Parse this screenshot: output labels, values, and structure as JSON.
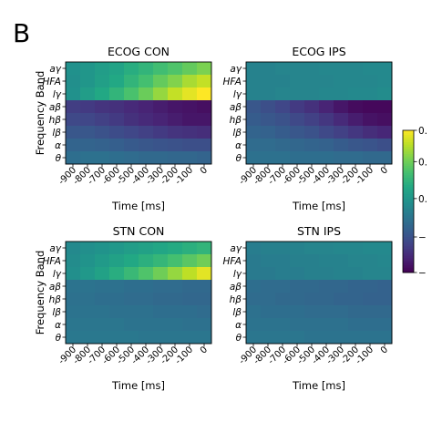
{
  "panel_label": "B",
  "colors": {
    "colormap": "viridis",
    "viridis_stops": [
      "#440154",
      "#482475",
      "#414487",
      "#355f8d",
      "#2a788e",
      "#21918c",
      "#22a884",
      "#44bf70",
      "#7ad151",
      "#bddf26",
      "#fde725"
    ]
  },
  "chart_data": [
    {
      "type": "heatmap",
      "title": "ECOG CON",
      "xlabel": "Time [ms]",
      "ylabel": "Frequency Band",
      "x": [
        "-900",
        "-800",
        "-700",
        "-600",
        "-500",
        "-400",
        "-300",
        "-200",
        "-100",
        "0"
      ],
      "y": [
        "aγ",
        "HFA",
        "lγ",
        "aβ",
        "hβ",
        "lβ",
        "α",
        "θ"
      ],
      "values": [
        [
          0.5,
          0.52,
          0.55,
          0.58,
          0.62,
          0.65,
          0.69,
          0.72,
          0.76,
          0.8
        ],
        [
          0.49,
          0.52,
          0.56,
          0.6,
          0.65,
          0.7,
          0.76,
          0.81,
          0.87,
          0.91
        ],
        [
          0.5,
          0.55,
          0.6,
          0.65,
          0.71,
          0.77,
          0.84,
          0.91,
          0.96,
          1.0
        ],
        [
          0.18,
          0.17,
          0.15,
          0.14,
          0.12,
          0.1,
          0.08,
          0.06,
          0.05,
          0.04
        ],
        [
          0.22,
          0.21,
          0.19,
          0.17,
          0.14,
          0.12,
          0.1,
          0.08,
          0.06,
          0.06
        ],
        [
          0.27,
          0.27,
          0.25,
          0.23,
          0.21,
          0.19,
          0.17,
          0.15,
          0.14,
          0.13
        ],
        [
          0.32,
          0.32,
          0.31,
          0.3,
          0.28,
          0.27,
          0.26,
          0.25,
          0.24,
          0.24
        ],
        [
          0.36,
          0.37,
          0.37,
          0.36,
          0.35,
          0.34,
          0.34,
          0.33,
          0.33,
          0.32
        ]
      ]
    },
    {
      "type": "heatmap",
      "title": "ECOG IPS",
      "xlabel": "Time [ms]",
      "ylabel": "",
      "x": [
        "-900",
        "-800",
        "-700",
        "-600",
        "-500",
        "-400",
        "-300",
        "-200",
        "-100",
        "0"
      ],
      "y": [
        "aγ",
        "HFA",
        "lγ",
        "aβ",
        "hβ",
        "lβ",
        "α",
        "θ"
      ],
      "values": [
        [
          0.44,
          0.44,
          0.45,
          0.45,
          0.45,
          0.46,
          0.46,
          0.46,
          0.47,
          0.47
        ],
        [
          0.44,
          0.44,
          0.44,
          0.45,
          0.45,
          0.45,
          0.46,
          0.46,
          0.46,
          0.47
        ],
        [
          0.44,
          0.44,
          0.45,
          0.45,
          0.45,
          0.46,
          0.46,
          0.47,
          0.47,
          0.48
        ],
        [
          0.27,
          0.24,
          0.21,
          0.17,
          0.14,
          0.1,
          0.06,
          0.03,
          0.02,
          0.02
        ],
        [
          0.29,
          0.27,
          0.25,
          0.22,
          0.19,
          0.16,
          0.12,
          0.08,
          0.05,
          0.04
        ],
        [
          0.32,
          0.31,
          0.29,
          0.27,
          0.25,
          0.22,
          0.19,
          0.16,
          0.13,
          0.11
        ],
        [
          0.35,
          0.35,
          0.34,
          0.33,
          0.32,
          0.31,
          0.29,
          0.27,
          0.26,
          0.24
        ],
        [
          0.37,
          0.37,
          0.37,
          0.36,
          0.36,
          0.36,
          0.35,
          0.35,
          0.34,
          0.34
        ]
      ]
    },
    {
      "type": "heatmap",
      "title": "STN CON",
      "xlabel": "Time [ms]",
      "ylabel": "Frequency Band",
      "x": [
        "-900",
        "-800",
        "-700",
        "-600",
        "-500",
        "-400",
        "-300",
        "-200",
        "-100",
        "0"
      ],
      "y": [
        "aγ",
        "HFA",
        "lγ",
        "aβ",
        "hβ",
        "lβ",
        "α",
        "θ"
      ],
      "values": [
        [
          0.47,
          0.49,
          0.51,
          0.53,
          0.55,
          0.57,
          0.59,
          0.61,
          0.63,
          0.65
        ],
        [
          0.48,
          0.51,
          0.54,
          0.57,
          0.6,
          0.63,
          0.66,
          0.7,
          0.74,
          0.78
        ],
        [
          0.49,
          0.53,
          0.57,
          0.62,
          0.67,
          0.72,
          0.78,
          0.84,
          0.9,
          0.96
        ],
        [
          0.38,
          0.38,
          0.37,
          0.37,
          0.36,
          0.36,
          0.35,
          0.35,
          0.34,
          0.34
        ],
        [
          0.37,
          0.37,
          0.36,
          0.36,
          0.35,
          0.35,
          0.34,
          0.34,
          0.33,
          0.33
        ],
        [
          0.38,
          0.38,
          0.38,
          0.37,
          0.37,
          0.37,
          0.36,
          0.36,
          0.36,
          0.35
        ],
        [
          0.39,
          0.39,
          0.39,
          0.39,
          0.38,
          0.38,
          0.38,
          0.38,
          0.37,
          0.37
        ],
        [
          0.4,
          0.4,
          0.4,
          0.4,
          0.4,
          0.39,
          0.39,
          0.39,
          0.39,
          0.39
        ]
      ]
    },
    {
      "type": "heatmap",
      "title": "STN IPS",
      "xlabel": "Time [ms]",
      "ylabel": "",
      "x": [
        "-900",
        "-800",
        "-700",
        "-600",
        "-500",
        "-400",
        "-300",
        "-200",
        "-100",
        "0"
      ],
      "y": [
        "aγ",
        "HFA",
        "lγ",
        "aβ",
        "hβ",
        "lβ",
        "α",
        "θ"
      ],
      "values": [
        [
          0.42,
          0.43,
          0.43,
          0.44,
          0.45,
          0.45,
          0.46,
          0.46,
          0.47,
          0.47
        ],
        [
          0.41,
          0.42,
          0.42,
          0.43,
          0.43,
          0.44,
          0.44,
          0.45,
          0.45,
          0.46
        ],
        [
          0.41,
          0.41,
          0.42,
          0.42,
          0.43,
          0.43,
          0.44,
          0.44,
          0.45,
          0.45
        ],
        [
          0.36,
          0.35,
          0.35,
          0.34,
          0.34,
          0.33,
          0.33,
          0.32,
          0.32,
          0.31
        ],
        [
          0.35,
          0.35,
          0.34,
          0.34,
          0.33,
          0.33,
          0.32,
          0.32,
          0.31,
          0.31
        ],
        [
          0.37,
          0.36,
          0.36,
          0.36,
          0.35,
          0.35,
          0.35,
          0.34,
          0.34,
          0.34
        ],
        [
          0.38,
          0.38,
          0.38,
          0.37,
          0.37,
          0.37,
          0.37,
          0.36,
          0.36,
          0.36
        ],
        [
          0.39,
          0.39,
          0.39,
          0.39,
          0.38,
          0.38,
          0.38,
          0.38,
          0.38,
          0.38
        ]
      ]
    }
  ],
  "colorbar": {
    "colormap": "viridis",
    "tick_labels": [
      "0.",
      "0.",
      "0.",
      "−",
      "−"
    ],
    "tick_levels": [
      1.0,
      0.78,
      0.52,
      0.25,
      0.0
    ]
  }
}
